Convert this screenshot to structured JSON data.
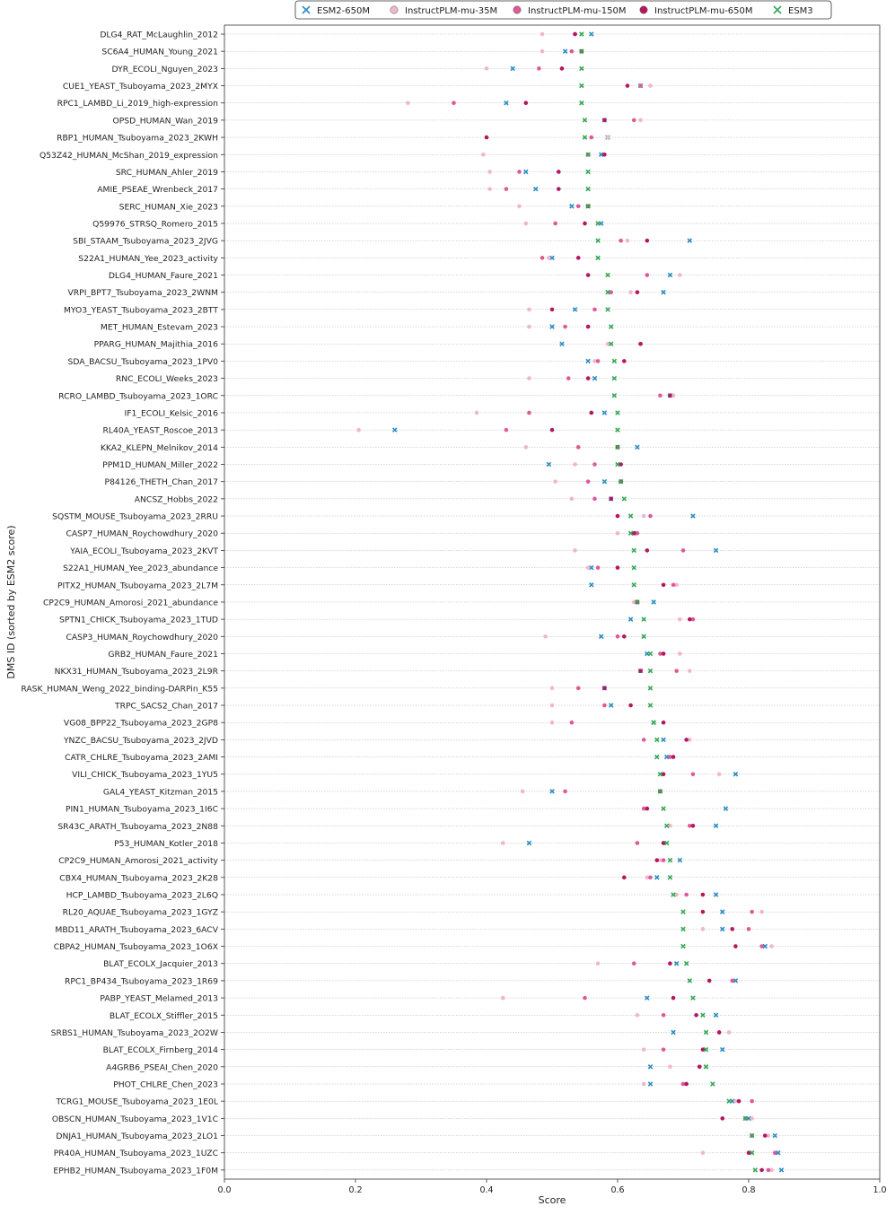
{
  "chart_data": {
    "type": "scatter",
    "xlabel": "Score",
    "ylabel": "DMS ID (sorted by ESM2 score)",
    "xlim": [
      0.0,
      1.0
    ],
    "xticks": [
      "0.0",
      "0.2",
      "0.4",
      "0.6",
      "0.8",
      "1.0"
    ],
    "xtick_values": [
      0.0,
      0.2,
      0.4,
      0.6,
      0.8,
      1.0
    ],
    "grid": "horizontal",
    "legend": {
      "position": "top-center",
      "entries": [
        {
          "name": "ESM2-650M",
          "marker": "x",
          "color": "#2b8cc4"
        },
        {
          "name": "InstructPLM-mu-35M",
          "marker": "o",
          "color": "#f2b6cc"
        },
        {
          "name": "InstructPLM-mu-150M",
          "marker": "o",
          "color": "#de5a97"
        },
        {
          "name": "InstructPLM-mu-650M",
          "marker": "o",
          "color": "#b5175f"
        },
        {
          "name": "ESM3",
          "marker": "x",
          "color": "#34a853"
        }
      ]
    },
    "categories": [
      "DLG4_RAT_McLaughlin_2012",
      "SC6A4_HUMAN_Young_2021",
      "DYR_ECOLI_Nguyen_2023",
      "CUE1_YEAST_Tsuboyama_2023_2MYX",
      "RPC1_LAMBD_Li_2019_high-expression",
      "OPSD_HUMAN_Wan_2019",
      "RBP1_HUMAN_Tsuboyama_2023_2KWH",
      "Q53Z42_HUMAN_McShan_2019_expression",
      "SRC_HUMAN_Ahler_2019",
      "AMIE_PSEAE_Wrenbeck_2017",
      "SERC_HUMAN_Xie_2023",
      "Q59976_STRSQ_Romero_2015",
      "SBI_STAAM_Tsuboyama_2023_2JVG",
      "S22A1_HUMAN_Yee_2023_activity",
      "DLG4_HUMAN_Faure_2021",
      "VRPI_BPT7_Tsuboyama_2023_2WNM",
      "MYO3_YEAST_Tsuboyama_2023_2BTT",
      "MET_HUMAN_Estevam_2023",
      "PPARG_HUMAN_Majithia_2016",
      "SDA_BACSU_Tsuboyama_2023_1PV0",
      "RNC_ECOLI_Weeks_2023",
      "RCRO_LAMBD_Tsuboyama_2023_1ORC",
      "IF1_ECOLI_Kelsic_2016",
      "RL40A_YEAST_Roscoe_2013",
      "KKA2_KLEPN_Melnikov_2014",
      "PPM1D_HUMAN_Miller_2022",
      "P84126_THETH_Chan_2017",
      "ANCSZ_Hobbs_2022",
      "SQSTM_MOUSE_Tsuboyama_2023_2RRU",
      "CASP7_HUMAN_Roychowdhury_2020",
      "YAIA_ECOLI_Tsuboyama_2023_2KVT",
      "S22A1_HUMAN_Yee_2023_abundance",
      "PITX2_HUMAN_Tsuboyama_2023_2L7M",
      "CP2C9_HUMAN_Amorosi_2021_abundance",
      "SPTN1_CHICK_Tsuboyama_2023_1TUD",
      "CASP3_HUMAN_Roychowdhury_2020",
      "GRB2_HUMAN_Faure_2021",
      "NKX31_HUMAN_Tsuboyama_2023_2L9R",
      "RASK_HUMAN_Weng_2022_binding-DARPin_K55",
      "TRPC_SACS2_Chan_2017",
      "VG08_BPP22_Tsuboyama_2023_2GP8",
      "YNZC_BACSU_Tsuboyama_2023_2JVD",
      "CATR_CHLRE_Tsuboyama_2023_2AMI",
      "VILI_CHICK_Tsuboyama_2023_1YU5",
      "GAL4_YEAST_Kitzman_2015",
      "PIN1_HUMAN_Tsuboyama_2023_1I6C",
      "SR43C_ARATH_Tsuboyama_2023_2N88",
      "P53_HUMAN_Kotler_2018",
      "CP2C9_HUMAN_Amorosi_2021_activity",
      "CBX4_HUMAN_Tsuboyama_2023_2K28",
      "HCP_LAMBD_Tsuboyama_2023_2L6Q",
      "RL20_AQUAE_Tsuboyama_2023_1GYZ",
      "MBD11_ARATH_Tsuboyama_2023_6ACV",
      "CBPA2_HUMAN_Tsuboyama_2023_1O6X",
      "BLAT_ECOLX_Jacquier_2013",
      "RPC1_BP434_Tsuboyama_2023_1R69",
      "PABP_YEAST_Melamed_2013",
      "BLAT_ECOLX_Stiffler_2015",
      "SRBS1_HUMAN_Tsuboyama_2023_2O2W",
      "BLAT_ECOLX_Firnberg_2014",
      "A4GRB6_PSEAI_Chen_2020",
      "PHOT_CHLRE_Chen_2023",
      "TCRG1_MOUSE_Tsuboyama_2023_1E0L",
      "OBSCN_HUMAN_Tsuboyama_2023_1V1C",
      "DNJA1_HUMAN_Tsuboyama_2023_2LO1",
      "PR40A_HUMAN_Tsuboyama_2023_1UZC",
      "EPHB2_HUMAN_Tsuboyama_2023_1F0M"
    ],
    "series": [
      {
        "name": "ESM2-650M",
        "values": [
          0.56,
          0.52,
          0.44,
          0.635,
          0.43,
          0.58,
          0.585,
          0.575,
          0.46,
          0.475,
          0.53,
          0.575,
          0.71,
          0.5,
          0.68,
          0.67,
          0.535,
          0.5,
          0.515,
          0.555,
          0.565,
          0.68,
          0.58,
          0.26,
          0.63,
          0.495,
          0.58,
          0.59,
          0.715,
          0.625,
          0.75,
          0.56,
          0.56,
          0.655,
          0.62,
          0.575,
          0.645,
          0.635,
          0.58,
          0.59,
          0.655,
          0.67,
          0.675,
          0.78,
          0.5,
          0.765,
          0.75,
          0.465,
          0.695,
          0.66,
          0.75,
          0.76,
          0.76,
          0.825,
          0.69,
          0.78,
          0.645,
          0.75,
          0.685,
          0.76,
          0.65,
          0.65,
          0.775,
          0.8,
          0.84,
          0.845,
          0.85
        ]
      },
      {
        "name": "InstructPLM-mu-35M",
        "values": [
          0.485,
          0.485,
          0.4,
          0.65,
          0.28,
          0.635,
          0.585,
          0.395,
          0.405,
          0.405,
          0.45,
          0.46,
          0.615,
          0.495,
          0.695,
          0.62,
          0.465,
          0.465,
          0.585,
          0.565,
          0.465,
          0.685,
          0.385,
          0.205,
          0.46,
          0.535,
          0.505,
          0.53,
          0.64,
          0.6,
          0.535,
          0.555,
          0.69,
          0.625,
          0.695,
          0.49,
          0.695,
          0.71,
          0.5,
          0.5,
          0.5,
          0.71,
          0.685,
          0.755,
          0.455,
          0.64,
          0.68,
          0.425,
          0.665,
          0.645,
          0.69,
          0.82,
          0.73,
          0.835,
          0.57,
          0.775,
          0.425,
          0.63,
          0.77,
          0.64,
          0.68,
          0.64,
          0.78,
          0.805,
          0.83,
          0.73,
          0.835
        ]
      },
      {
        "name": "InstructPLM-mu-150M",
        "values": [
          0.535,
          0.53,
          0.48,
          0.635,
          0.35,
          0.625,
          0.56,
          0.555,
          0.45,
          0.43,
          0.54,
          0.505,
          0.605,
          0.485,
          0.645,
          0.59,
          0.565,
          0.52,
          0.635,
          0.57,
          0.525,
          0.665,
          0.465,
          0.43,
          0.54,
          0.565,
          0.555,
          0.565,
          0.65,
          0.63,
          0.7,
          0.57,
          0.685,
          0.63,
          0.715,
          0.6,
          0.665,
          0.69,
          0.54,
          0.58,
          0.53,
          0.64,
          0.68,
          0.715,
          0.52,
          0.64,
          0.71,
          0.63,
          0.67,
          0.65,
          0.705,
          0.805,
          0.8,
          0.82,
          0.625,
          0.775,
          0.55,
          0.67,
          0.755,
          0.67,
          0.725,
          0.7,
          0.805,
          0.795,
          0.805,
          0.84,
          0.83
        ]
      },
      {
        "name": "InstructPLM-mu-650M",
        "values": [
          0.535,
          0.545,
          0.515,
          0.615,
          0.46,
          0.58,
          0.4,
          0.58,
          0.51,
          0.51,
          0.555,
          0.55,
          0.645,
          0.54,
          0.555,
          0.63,
          0.5,
          0.555,
          0.635,
          0.61,
          0.555,
          0.68,
          0.56,
          0.5,
          0.6,
          0.605,
          0.605,
          0.59,
          0.6,
          0.625,
          0.645,
          0.6,
          0.67,
          0.63,
          0.71,
          0.61,
          0.67,
          0.635,
          0.58,
          0.62,
          0.67,
          0.705,
          0.685,
          0.67,
          0.665,
          0.645,
          0.715,
          0.67,
          0.66,
          0.61,
          0.73,
          0.73,
          0.775,
          0.78,
          0.68,
          0.74,
          0.685,
          0.72,
          0.755,
          0.73,
          0.725,
          0.705,
          0.785,
          0.76,
          0.825,
          0.8,
          0.82
        ]
      },
      {
        "name": "ESM3",
        "values": [
          0.545,
          0.545,
          0.545,
          0.545,
          0.545,
          0.55,
          0.55,
          0.555,
          0.555,
          0.555,
          0.555,
          0.57,
          0.57,
          0.57,
          0.585,
          0.585,
          0.585,
          0.59,
          0.59,
          0.595,
          0.595,
          0.595,
          0.6,
          0.6,
          0.6,
          0.6,
          0.605,
          0.61,
          0.62,
          0.62,
          0.625,
          0.625,
          0.625,
          0.63,
          0.64,
          0.64,
          0.65,
          0.65,
          0.65,
          0.65,
          0.655,
          0.66,
          0.66,
          0.665,
          0.665,
          0.67,
          0.675,
          0.675,
          0.68,
          0.68,
          0.685,
          0.7,
          0.7,
          0.7,
          0.705,
          0.71,
          0.715,
          0.73,
          0.735,
          0.735,
          0.735,
          0.745,
          0.77,
          0.795,
          0.805,
          0.805,
          0.81
        ]
      }
    ]
  }
}
